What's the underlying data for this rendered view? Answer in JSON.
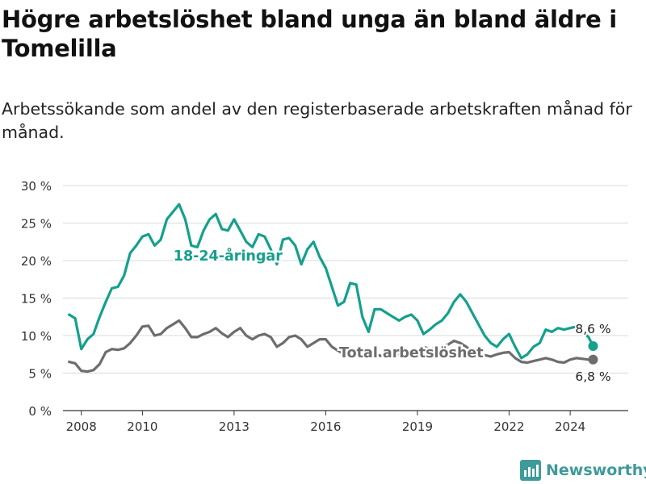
{
  "title": "Högre arbetslöshet bland unga än bland äldre i Tomelilla",
  "subtitle": "Arbetssökande som andel av den registerbaserade arbetskraften månad för månad.",
  "brand": {
    "name": "Newsworthy",
    "icon": "bar-chart-logo-icon"
  },
  "colors": {
    "youth": "#14a08c",
    "total": "#6d6d6d",
    "grid": "#d9d9d9",
    "axis": "#333333"
  },
  "chart_data": {
    "type": "line",
    "x_ticks": [
      "2008",
      "2010",
      "2013",
      "2016",
      "2019",
      "2022",
      "2024"
    ],
    "y_ticks": [
      "0 %",
      "5 %",
      "10 %",
      "15 %",
      "20 %",
      "25 %",
      "30 %"
    ],
    "ylim": [
      0,
      30
    ],
    "xlim": [
      2007.4,
      2025.9
    ],
    "grid": true,
    "series": [
      {
        "name": "18-24-åringar",
        "label_text": "18-24-åringar",
        "end_label": "8,6 %",
        "color": "#14a08c",
        "x": [
          2007.6,
          2007.8,
          2008.0,
          2008.2,
          2008.4,
          2008.6,
          2008.8,
          2009.0,
          2009.2,
          2009.4,
          2009.6,
          2009.8,
          2010.0,
          2010.2,
          2010.4,
          2010.6,
          2010.8,
          2011.0,
          2011.2,
          2011.4,
          2011.6,
          2011.8,
          2012.0,
          2012.2,
          2012.4,
          2012.6,
          2012.8,
          2013.0,
          2013.2,
          2013.4,
          2013.6,
          2013.8,
          2014.0,
          2014.2,
          2014.4,
          2014.6,
          2014.8,
          2015.0,
          2015.2,
          2015.4,
          2015.6,
          2015.8,
          2016.0,
          2016.2,
          2016.4,
          2016.6,
          2016.8,
          2017.0,
          2017.2,
          2017.4,
          2017.6,
          2017.8,
          2018.0,
          2018.2,
          2018.4,
          2018.6,
          2018.8,
          2019.0,
          2019.2,
          2019.4,
          2019.6,
          2019.8,
          2020.0,
          2020.2,
          2020.4,
          2020.6,
          2020.8,
          2021.0,
          2021.2,
          2021.4,
          2021.6,
          2021.8,
          2022.0,
          2022.2,
          2022.4,
          2022.6,
          2022.8,
          2023.0,
          2023.2,
          2023.4,
          2023.6,
          2023.8,
          2024.0,
          2024.2,
          2024.4,
          2024.6,
          2024.75
        ],
        "values": [
          12.8,
          12.3,
          8.2,
          9.5,
          10.2,
          12.5,
          14.5,
          16.3,
          16.5,
          18.0,
          21.0,
          22.0,
          23.2,
          23.5,
          22.0,
          22.8,
          25.5,
          26.5,
          27.5,
          25.5,
          22.0,
          21.8,
          24.0,
          25.5,
          26.2,
          24.2,
          24.0,
          25.5,
          24.0,
          22.5,
          21.8,
          23.5,
          23.2,
          21.5,
          19.5,
          22.8,
          23.0,
          22.0,
          19.5,
          21.5,
          22.5,
          20.5,
          19.0,
          16.5,
          14.0,
          14.5,
          17.0,
          16.8,
          12.5,
          10.5,
          13.5,
          13.5,
          13.0,
          12.5,
          12.0,
          12.5,
          12.8,
          12.0,
          10.2,
          10.8,
          11.5,
          12.0,
          13.0,
          14.5,
          15.5,
          14.5,
          13.0,
          11.5,
          10.0,
          9.0,
          8.5,
          9.5,
          10.2,
          8.5,
          7.0,
          7.5,
          8.5,
          9.0,
          10.8,
          10.5,
          11.0,
          10.8,
          11.0,
          11.2,
          10.5,
          9.8,
          8.6
        ]
      },
      {
        "name": "Total arbetslöshet",
        "label_text": "Total arbetslöshet",
        "end_label": "6,8 %",
        "color": "#6d6d6d",
        "x": [
          2007.6,
          2007.8,
          2008.0,
          2008.2,
          2008.4,
          2008.6,
          2008.8,
          2009.0,
          2009.2,
          2009.4,
          2009.6,
          2009.8,
          2010.0,
          2010.2,
          2010.4,
          2010.6,
          2010.8,
          2011.0,
          2011.2,
          2011.4,
          2011.6,
          2011.8,
          2012.0,
          2012.2,
          2012.4,
          2012.6,
          2012.8,
          2013.0,
          2013.2,
          2013.4,
          2013.6,
          2013.8,
          2014.0,
          2014.2,
          2014.4,
          2014.6,
          2014.8,
          2015.0,
          2015.2,
          2015.4,
          2015.6,
          2015.8,
          2016.0,
          2016.2,
          2016.4,
          2016.6,
          2016.8,
          2017.0,
          2017.2,
          2017.4,
          2017.6,
          2017.8,
          2018.0,
          2018.2,
          2018.4,
          2018.6,
          2018.8,
          2019.0,
          2019.2,
          2019.4,
          2019.6,
          2019.8,
          2020.0,
          2020.2,
          2020.4,
          2020.6,
          2020.8,
          2021.0,
          2021.2,
          2021.4,
          2021.6,
          2021.8,
          2022.0,
          2022.2,
          2022.4,
          2022.6,
          2022.8,
          2023.0,
          2023.2,
          2023.4,
          2023.6,
          2023.8,
          2024.0,
          2024.2,
          2024.4,
          2024.6,
          2024.75
        ],
        "values": [
          6.5,
          6.3,
          5.3,
          5.2,
          5.4,
          6.2,
          7.8,
          8.2,
          8.1,
          8.3,
          9.0,
          10.0,
          11.2,
          11.3,
          10.0,
          10.2,
          11.0,
          11.5,
          12.0,
          11.0,
          9.8,
          9.8,
          10.2,
          10.5,
          11.0,
          10.3,
          9.8,
          10.5,
          11.0,
          10.0,
          9.5,
          10.0,
          10.2,
          9.8,
          8.5,
          9.0,
          9.8,
          10.0,
          9.5,
          8.5,
          9.0,
          9.5,
          9.5,
          8.5,
          8.0,
          7.5,
          7.3,
          7.8,
          8.0,
          7.8,
          7.5,
          7.3,
          7.4,
          7.8,
          7.5,
          7.5,
          7.8,
          8.0,
          8.5,
          8.2,
          8.3,
          8.5,
          8.8,
          9.3,
          9.0,
          8.5,
          7.8,
          7.5,
          7.4,
          7.2,
          7.5,
          7.7,
          7.8,
          7.0,
          6.5,
          6.4,
          6.6,
          6.8,
          7.0,
          6.8,
          6.5,
          6.4,
          6.8,
          7.0,
          6.9,
          6.8,
          6.8
        ]
      }
    ]
  }
}
